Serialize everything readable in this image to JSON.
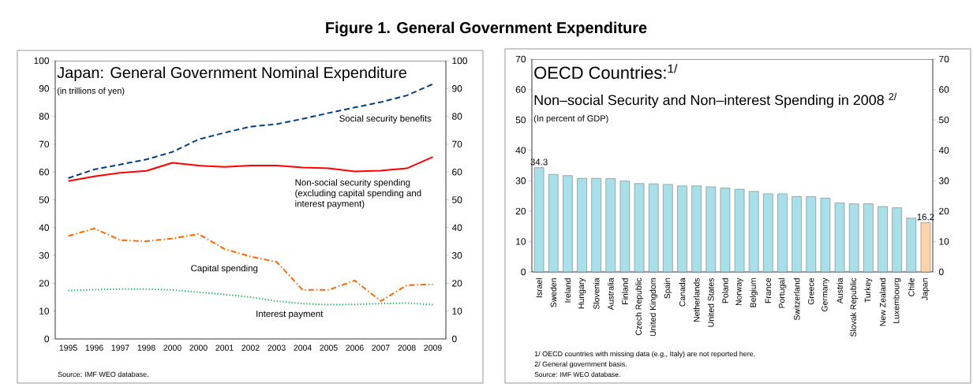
{
  "chart_data": [
    {
      "type": "line",
      "title": "Figure 1. General Government Expenditure",
      "subtitle": "Japan: General Government Nominal Expenditure",
      "annotations": [
        "(in trillions of yen)",
        "Source: IMF WEO database."
      ],
      "categories": [
        "1995",
        "1996",
        "1997",
        "1998",
        "2000",
        "2000",
        "2001",
        "2002",
        "2003",
        "2004",
        "2005",
        "2006",
        "2007",
        "2008",
        "2009"
      ],
      "series": [
        {
          "name": "Social security benefits",
          "color": "#003f7f",
          "line_style": "dashed",
          "values": [
            57.8,
            60.9,
            62.7,
            64.5,
            67.2,
            71.7,
            74.1,
            76.3,
            77.2,
            79.1,
            81.2,
            83.2,
            85.1,
            87.5,
            91.6
          ]
        },
        {
          "name": "Non-social security spending (excluding capital spending and interest payment)",
          "color": "#ff0000",
          "line_style": "solid",
          "values": [
            56.7,
            58.4,
            59.7,
            60.4,
            63.3,
            62.3,
            61.8,
            62.3,
            62.3,
            61.6,
            61.3,
            60.2,
            60.5,
            61.3,
            65.4
          ]
        },
        {
          "name": "Capital spending",
          "color": "#ff6600",
          "line_style": "dashdot",
          "values": [
            37.0,
            39.7,
            35.5,
            35.1,
            36.1,
            37.7,
            32.3,
            29.6,
            27.7,
            17.6,
            17.6,
            21.0,
            13.6,
            19.3,
            19.6
          ]
        },
        {
          "name": "Interest payment",
          "color": "#00b050",
          "line_style": "dotted",
          "values": [
            17.4,
            17.7,
            17.9,
            17.9,
            17.6,
            16.8,
            16.0,
            15.0,
            13.6,
            12.7,
            12.3,
            12.4,
            12.7,
            12.9,
            12.3
          ]
        }
      ],
      "ylim": [
        0,
        100
      ],
      "yticks": [
        0,
        10,
        20,
        30,
        40,
        50,
        60,
        70,
        80,
        90,
        100
      ],
      "y2lim": [
        0,
        100
      ],
      "y2ticks": [
        0,
        10,
        20,
        30,
        40,
        50,
        60,
        70,
        80,
        90,
        100
      ]
    },
    {
      "type": "bar",
      "title": "OECD Countries:$^{1/}$",
      "subtitle": "Non–social Security and Non–interest Spending in 2008 $^{2/}$",
      "annotations": [
        "(In percent of GDP)",
        "1/ OECD countries with missing data (e.g., Italy) are not reported here.",
        "2/ General government basis.",
        "Source: IMF WEO database."
      ],
      "categories": [
        "Israel",
        "Sweden",
        "Ireland",
        "Hungary",
        "Slovenia",
        "Australia",
        "Finland",
        "Czech Republic",
        "United Kingdom",
        "Spain",
        "Canada",
        "Netherlands",
        "United States",
        "Poland",
        "Norway",
        "Belgium",
        "France",
        "Portugal",
        "Switzerland",
        "Greece",
        "Germany",
        "Austria",
        "Slovak Republic",
        "Turkey",
        "New Zealand",
        "Luxembourg",
        "Chile",
        "Japan"
      ],
      "values": [
        34.3,
        32.1,
        31.7,
        30.8,
        30.8,
        30.7,
        29.9,
        29.1,
        29.0,
        28.8,
        28.3,
        28.3,
        28.0,
        27.6,
        27.2,
        26.5,
        25.7,
        25.7,
        24.8,
        24.8,
        24.3,
        22.7,
        22.4,
        22.4,
        21.5,
        21.1,
        17.7,
        16.2
      ],
      "value_labels": [
        "34.3",
        null,
        null,
        null,
        null,
        null,
        null,
        null,
        null,
        null,
        null,
        null,
        null,
        null,
        null,
        null,
        null,
        null,
        null,
        null,
        null,
        null,
        null,
        null,
        null,
        null,
        null,
        "16.2"
      ],
      "colors": [
        "#a8dfe9",
        "#a8dfe9",
        "#a8dfe9",
        "#a8dfe9",
        "#a8dfe9",
        "#a8dfe9",
        "#a8dfe9",
        "#a8dfe9",
        "#a8dfe9",
        "#a8dfe9",
        "#a8dfe9",
        "#a8dfe9",
        "#a8dfe9",
        "#a8dfe9",
        "#a8dfe9",
        "#a8dfe9",
        "#a8dfe9",
        "#a8dfe9",
        "#a8dfe9",
        "#a8dfe9",
        "#a8dfe9",
        "#a8dfe9",
        "#a8dfe9",
        "#a8dfe9",
        "#a8dfe9",
        "#a8dfe9",
        "#a8dfe9",
        "#fdd3aa"
      ],
      "ylim": [
        0,
        70
      ],
      "yticks": [
        0,
        10,
        20,
        30,
        40,
        50,
        60,
        70
      ],
      "y2lim": [
        0,
        70
      ],
      "y2ticks": [
        0,
        10,
        20,
        30,
        40,
        50,
        60,
        70
      ]
    }
  ]
}
